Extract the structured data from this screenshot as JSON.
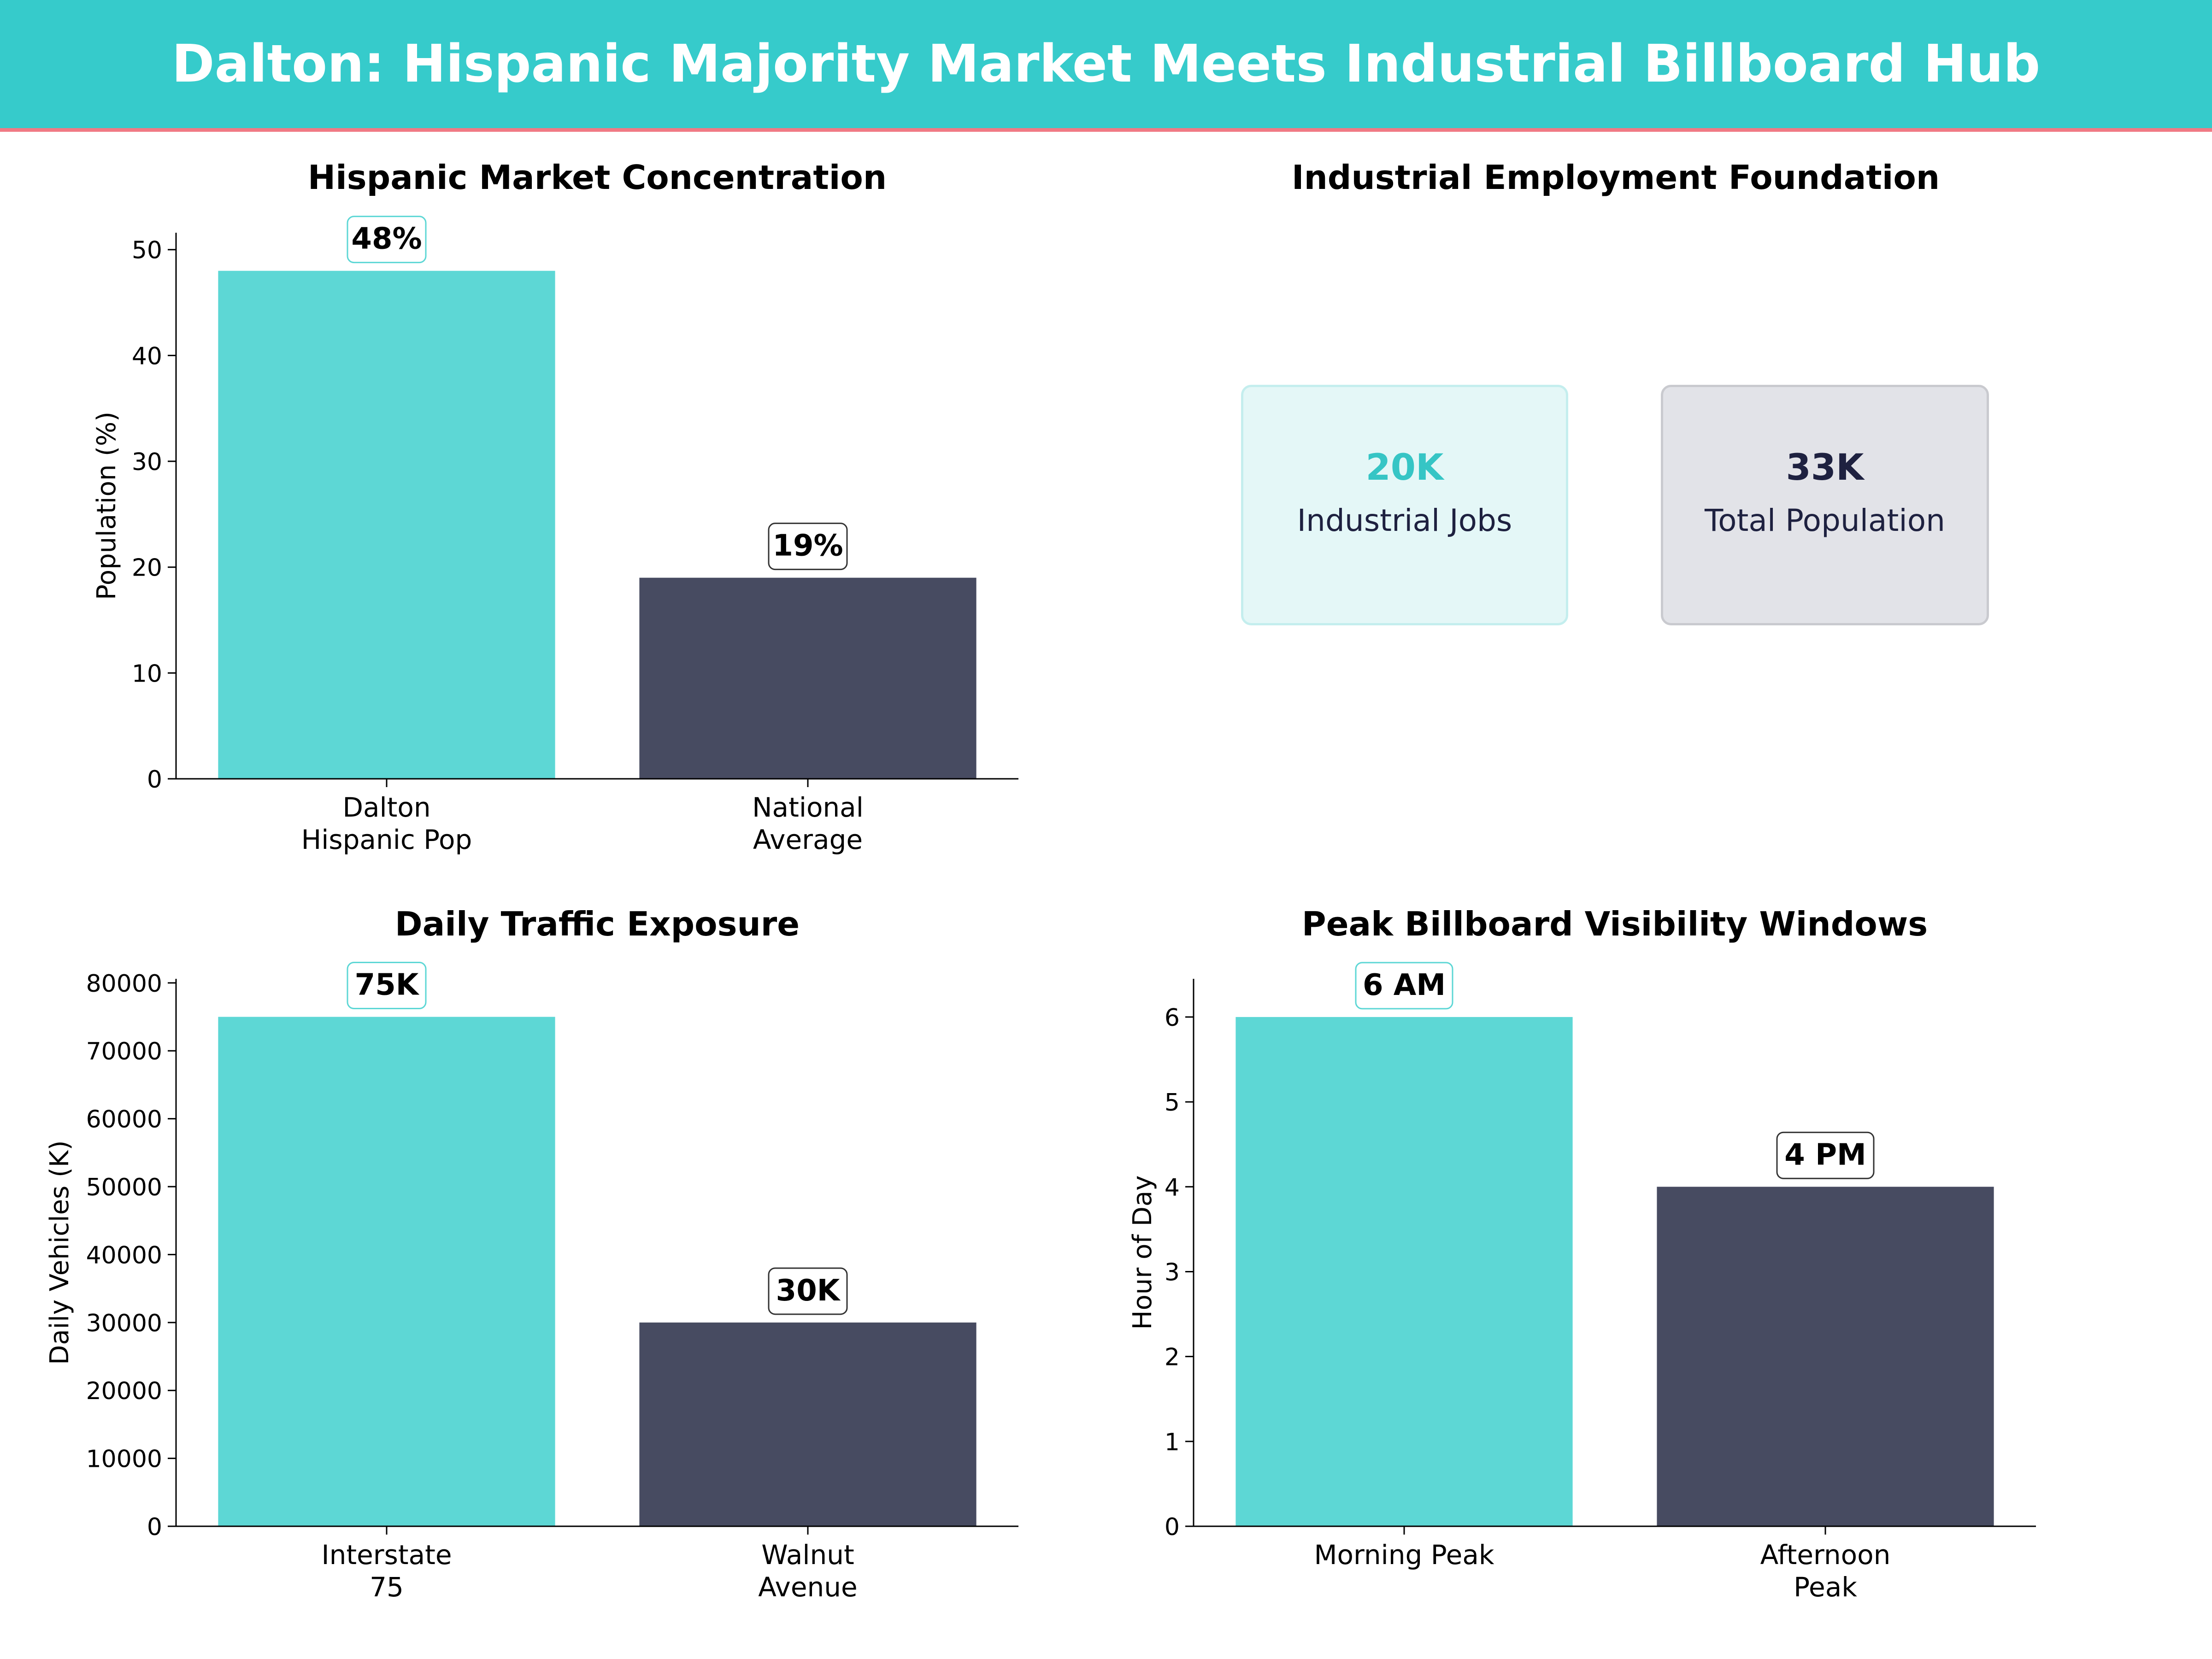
{
  "title": "Dalton: Hispanic Majority Market Meets Industrial Billboard Hub",
  "colors": {
    "banner": "#36cbcb",
    "banner_line": "#f07a84",
    "teal": "#5dd7d5",
    "navy": "#474b61",
    "teal_text": "#36c5c5",
    "navy_text": "#1e2140"
  },
  "kpi_panel": {
    "title": "Industrial Employment Foundation",
    "cards": [
      {
        "value": "20K",
        "label": "Industrial Jobs",
        "color": "teal"
      },
      {
        "value": "33K",
        "label": "Total Population",
        "color": "navy"
      }
    ]
  },
  "chart_data": [
    {
      "type": "bar",
      "title": "Hispanic Market Concentration",
      "categories": [
        "Dalton\nHispanic Pop",
        "National\nAverage"
      ],
      "values": [
        48,
        19
      ],
      "data_labels": [
        "48%",
        "19%"
      ],
      "xlabel": "",
      "ylabel": "Population (%)",
      "ylim": [
        0,
        51.6
      ],
      "yticks": [
        0,
        10,
        20,
        30,
        40,
        50
      ],
      "colors": [
        "teal",
        "navy"
      ]
    },
    {
      "type": "bar",
      "title": "Daily Traffic Exposure",
      "categories": [
        "Interstate\n75",
        "Walnut\nAvenue"
      ],
      "values": [
        75000,
        30000
      ],
      "data_labels": [
        "75K",
        "30K"
      ],
      "xlabel": "",
      "ylabel": "Daily Vehicles (K)",
      "ylim": [
        0,
        80600
      ],
      "yticks": [
        0,
        10000,
        20000,
        30000,
        40000,
        50000,
        60000,
        70000,
        80000
      ],
      "colors": [
        "teal",
        "navy"
      ]
    },
    {
      "type": "bar",
      "title": "Peak Billboard Visibility Windows",
      "categories": [
        "Morning Peak",
        "Afternoon\nPeak"
      ],
      "values": [
        6,
        4
      ],
      "data_labels": [
        "6 AM",
        "4 PM"
      ],
      "xlabel": "",
      "ylabel": "Hour of Day",
      "ylim": [
        0,
        6.45
      ],
      "yticks": [
        0,
        1,
        2,
        3,
        4,
        5,
        6
      ],
      "colors": [
        "teal",
        "navy"
      ]
    }
  ]
}
